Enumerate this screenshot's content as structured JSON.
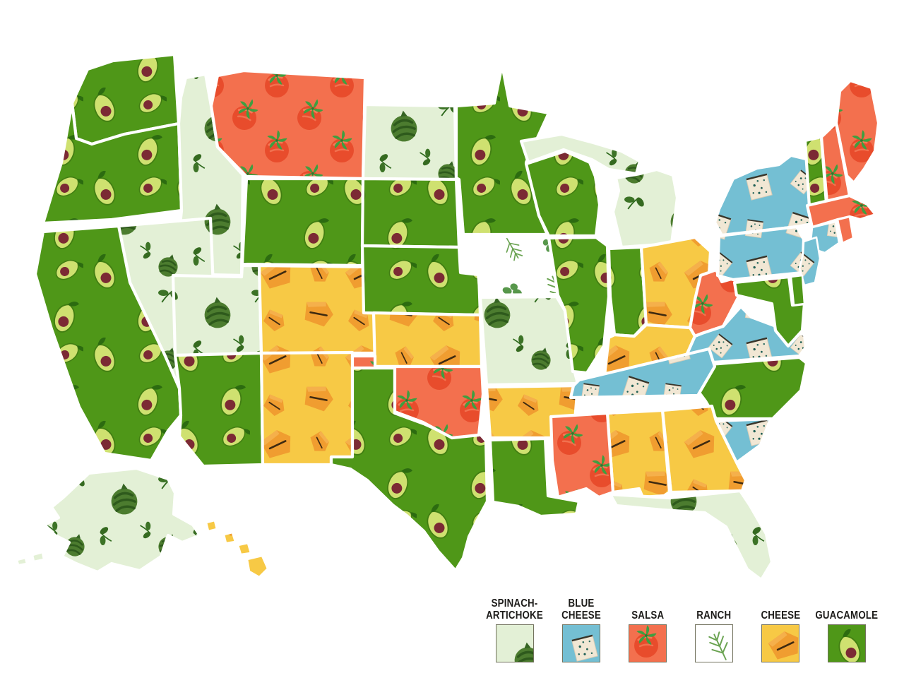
{
  "legend": {
    "items": [
      {
        "label": "SPINACH-\nARTICHOKE",
        "dip": "spinach_artichoke"
      },
      {
        "label": "BLUE CHEESE",
        "dip": "blue_cheese"
      },
      {
        "label": "SALSA",
        "dip": "salsa"
      },
      {
        "label": "RANCH",
        "dip": "ranch"
      },
      {
        "label": "CHEESE",
        "dip": "cheese"
      },
      {
        "label": "GUACAMOLE",
        "dip": "guacamole"
      }
    ]
  },
  "dips": {
    "spinach_artichoke": {
      "label": "Spinach-Artichoke",
      "icon": "artichoke-icon",
      "colors": {
        "bg": "#e3f0d6",
        "icon": "#4c7c2f"
      }
    },
    "blue_cheese": {
      "label": "Blue Cheese",
      "icon": "blue-cheese-cube-icon",
      "colors": {
        "bg": "#74bfd3",
        "icon": "#f1e7d4"
      }
    },
    "salsa": {
      "label": "Salsa",
      "icon": "tomato-icon",
      "colors": {
        "bg": "#f3704e",
        "icon": "#e84c2c"
      }
    },
    "ranch": {
      "label": "Ranch",
      "icon": "herb-sprig-icon",
      "colors": {
        "bg": "#ffffff",
        "icon": "#5d9b4b"
      }
    },
    "cheese": {
      "label": "Cheese",
      "icon": "cheese-chip-icon",
      "colors": {
        "bg": "#f7c945",
        "icon": "#f09d30"
      }
    },
    "guacamole": {
      "label": "Guacamole",
      "icon": "avocado-icon",
      "colors": {
        "bg": "#4f9718",
        "icon": "#cfe170"
      }
    }
  },
  "map": {
    "border_color": "#ffffff",
    "states": {
      "WA": "guacamole",
      "OR": "guacamole",
      "CA": "guacamole",
      "ID": "spinach_artichoke",
      "NV": "spinach_artichoke",
      "UT": "spinach_artichoke",
      "AZ": "guacamole",
      "MT": "salsa",
      "WY": "guacamole",
      "CO": "cheese",
      "NM": "cheese",
      "TX": "guacamole",
      "ND": "spinach_artichoke",
      "SD": "guacamole",
      "NE": "guacamole",
      "KS": "cheese",
      "OK": "salsa",
      "MN": "guacamole",
      "IA": "ranch",
      "MO": "spinach_artichoke",
      "AR": "cheese",
      "LA": "guacamole",
      "WI": "guacamole",
      "MI": "spinach_artichoke",
      "IL": "guacamole",
      "IN": "guacamole",
      "OH": "cheese",
      "KY": "cheese",
      "TN": "blue_cheese",
      "MS": "salsa",
      "AL": "cheese",
      "GA": "cheese",
      "FL": "spinach_artichoke",
      "SC": "blue_cheese",
      "NC": "guacamole",
      "VA": "blue_cheese",
      "WV": "salsa",
      "PA": "blue_cheese",
      "NY": "blue_cheese",
      "NJ": "blue_cheese",
      "DE": "guacamole",
      "MD": "guacamole",
      "CT": "blue_cheese",
      "RI": "salsa",
      "MA": "salsa",
      "VT": "guacamole",
      "NH": "salsa",
      "ME": "salsa",
      "AK": "spinach_artichoke",
      "HI": "cheese"
    }
  }
}
